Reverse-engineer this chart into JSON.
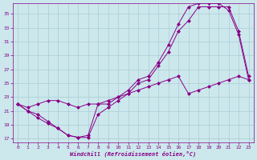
{
  "xlabel": "Windchill (Refroidissement éolien,°C)",
  "xlim": [
    -0.5,
    23.5
  ],
  "ylim": [
    16.5,
    36.5
  ],
  "xticks": [
    0,
    1,
    2,
    3,
    4,
    5,
    6,
    7,
    8,
    9,
    10,
    11,
    12,
    13,
    14,
    15,
    16,
    17,
    18,
    19,
    20,
    21,
    22,
    23
  ],
  "yticks": [
    17,
    19,
    21,
    23,
    25,
    27,
    29,
    31,
    33,
    35
  ],
  "background_color": "#cce8ec",
  "grid_color": "#aaccd4",
  "line_color": "#880088",
  "line1_x": [
    0,
    1,
    2,
    3,
    4,
    5,
    6,
    7,
    8,
    9,
    10,
    11,
    12,
    13,
    14,
    15,
    16,
    17,
    18,
    19,
    20,
    21,
    22,
    23
  ],
  "line1_y": [
    22,
    21,
    20.5,
    19.5,
    18.5,
    17.5,
    17.2,
    17.2,
    20.5,
    21.5,
    22.5,
    23.5,
    25,
    25.5,
    27.5,
    29.5,
    32.5,
    34,
    36,
    36,
    36,
    36,
    32.5,
    26
  ],
  "line2_x": [
    0,
    1,
    2,
    3,
    4,
    5,
    6,
    7,
    8,
    9,
    10,
    11,
    12,
    13,
    14,
    15,
    16,
    17,
    18,
    19,
    20,
    21,
    22,
    23
  ],
  "line2_y": [
    22,
    21,
    20,
    19.2,
    18.5,
    17.5,
    17.2,
    17.5,
    22,
    22,
    23,
    24,
    25.5,
    26,
    28,
    30.5,
    33.5,
    36,
    36.5,
    36.5,
    36.5,
    35.5,
    32,
    25.5
  ],
  "line3_x": [
    0,
    1,
    2,
    3,
    4,
    5,
    6,
    7,
    8,
    9,
    10,
    11,
    12,
    13,
    14,
    15,
    16,
    17,
    18,
    19,
    20,
    21,
    22,
    23
  ],
  "line3_y": [
    22,
    21.5,
    22,
    22.5,
    22.5,
    22,
    21.5,
    22,
    22,
    22.5,
    23,
    23.5,
    24,
    24.5,
    25,
    25.5,
    26,
    23.5,
    24,
    24.5,
    25,
    25.5,
    26,
    25.5
  ]
}
